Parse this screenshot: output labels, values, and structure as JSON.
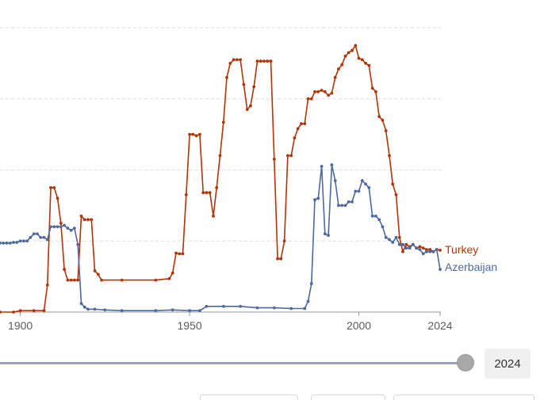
{
  "chart_data": {
    "type": "line",
    "title": "",
    "xlabel": "",
    "ylabel": "",
    "xlim": [
      1894,
      2024
    ],
    "ylim": [
      0,
      4
    ],
    "x_ticks": [
      "1900",
      "1950",
      "2000",
      "2024"
    ],
    "y_gridlines": [
      1,
      2,
      3,
      4
    ],
    "grid": true,
    "series": [
      {
        "name": "Turkey",
        "color": "#b13507",
        "points": [
          [
            1894,
            0
          ],
          [
            1898,
            0
          ],
          [
            1900,
            0.02
          ],
          [
            1904,
            0.02
          ],
          [
            1907,
            0.02
          ],
          [
            1908,
            0.38
          ],
          [
            1909,
            1.75
          ],
          [
            1910,
            1.75
          ],
          [
            1911,
            1.6
          ],
          [
            1912,
            1.25
          ],
          [
            1913,
            0.6
          ],
          [
            1914,
            0.45
          ],
          [
            1915,
            0.45
          ],
          [
            1916,
            0.45
          ],
          [
            1917,
            0.45
          ],
          [
            1918,
            1.35
          ],
          [
            1919,
            1.3
          ],
          [
            1920,
            1.3
          ],
          [
            1921,
            1.3
          ],
          [
            1922,
            0.58
          ],
          [
            1923,
            0.53
          ],
          [
            1924,
            0.45
          ],
          [
            1930,
            0.45
          ],
          [
            1940,
            0.45
          ],
          [
            1944,
            0.47
          ],
          [
            1945,
            0.55
          ],
          [
            1946,
            0.83
          ],
          [
            1947,
            0.82
          ],
          [
            1948,
            0.82
          ],
          [
            1949,
            1.65
          ],
          [
            1950,
            2.5
          ],
          [
            1951,
            2.5
          ],
          [
            1952,
            2.48
          ],
          [
            1953,
            2.5
          ],
          [
            1954,
            1.68
          ],
          [
            1955,
            1.68
          ],
          [
            1956,
            1.68
          ],
          [
            1957,
            1.35
          ],
          [
            1958,
            1.75
          ],
          [
            1959,
            2.2
          ],
          [
            1960,
            2.67
          ],
          [
            1961,
            3.3
          ],
          [
            1962,
            3.5
          ],
          [
            1963,
            3.55
          ],
          [
            1964,
            3.55
          ],
          [
            1965,
            3.55
          ],
          [
            1966,
            3.2
          ],
          [
            1967,
            2.85
          ],
          [
            1968,
            2.9
          ],
          [
            1969,
            3.17
          ],
          [
            1970,
            3.53
          ],
          [
            1971,
            3.53
          ],
          [
            1972,
            3.53
          ],
          [
            1973,
            3.53
          ],
          [
            1974,
            3.53
          ],
          [
            1975,
            2.15
          ],
          [
            1976,
            0.75
          ],
          [
            1977,
            0.75
          ],
          [
            1978,
            1.0
          ],
          [
            1979,
            2.2
          ],
          [
            1980,
            2.2
          ],
          [
            1981,
            2.45
          ],
          [
            1982,
            2.58
          ],
          [
            1983,
            2.65
          ],
          [
            1984,
            2.65
          ],
          [
            1985,
            3.0
          ],
          [
            1986,
            3.0
          ],
          [
            1987,
            3.1
          ],
          [
            1988,
            3.1
          ],
          [
            1989,
            3.12
          ],
          [
            1990,
            3.1
          ],
          [
            1991,
            3.05
          ],
          [
            1992,
            3.08
          ],
          [
            1993,
            3.3
          ],
          [
            1994,
            3.42
          ],
          [
            1995,
            3.48
          ],
          [
            1996,
            3.6
          ],
          [
            1997,
            3.65
          ],
          [
            1998,
            3.68
          ],
          [
            1999,
            3.75
          ],
          [
            2000,
            3.57
          ],
          [
            2001,
            3.55
          ],
          [
            2002,
            3.5
          ],
          [
            2003,
            3.47
          ],
          [
            2004,
            3.15
          ],
          [
            2005,
            3.1
          ],
          [
            2006,
            2.75
          ],
          [
            2007,
            2.7
          ],
          [
            2008,
            2.55
          ],
          [
            2009,
            2.2
          ],
          [
            2010,
            1.8
          ],
          [
            2011,
            1.65
          ],
          [
            2012,
            1.05
          ],
          [
            2013,
            0.85
          ],
          [
            2014,
            0.95
          ],
          [
            2015,
            0.92
          ],
          [
            2016,
            0.95
          ],
          [
            2017,
            0.9
          ],
          [
            2018,
            0.92
          ],
          [
            2019,
            0.9
          ],
          [
            2020,
            0.88
          ],
          [
            2021,
            0.88
          ],
          [
            2022,
            0.85
          ],
          [
            2023,
            0.88
          ],
          [
            2024,
            0.87
          ]
        ]
      },
      {
        "name": "Azerbaijan",
        "color": "#4c6a9c",
        "points": [
          [
            1894,
            0.97
          ],
          [
            1895,
            0.97
          ],
          [
            1896,
            0.97
          ],
          [
            1897,
            0.97
          ],
          [
            1898,
            0.98
          ],
          [
            1899,
            0.98
          ],
          [
            1900,
            1.0
          ],
          [
            1901,
            1.0
          ],
          [
            1902,
            1.0
          ],
          [
            1903,
            1.05
          ],
          [
            1904,
            1.1
          ],
          [
            1905,
            1.1
          ],
          [
            1906,
            1.05
          ],
          [
            1907,
            1.05
          ],
          [
            1908,
            1.02
          ],
          [
            1909,
            1.2
          ],
          [
            1910,
            1.2
          ],
          [
            1911,
            1.2
          ],
          [
            1912,
            1.2
          ],
          [
            1913,
            1.22
          ],
          [
            1914,
            1.18
          ],
          [
            1915,
            1.15
          ],
          [
            1916,
            1.18
          ],
          [
            1917,
            0.95
          ],
          [
            1918,
            0.12
          ],
          [
            1919,
            0.07
          ],
          [
            1920,
            0.04
          ],
          [
            1922,
            0.04
          ],
          [
            1925,
            0.03
          ],
          [
            1930,
            0.02
          ],
          [
            1940,
            0.02
          ],
          [
            1945,
            0.03
          ],
          [
            1950,
            0.02
          ],
          [
            1953,
            0.02
          ],
          [
            1955,
            0.08
          ],
          [
            1960,
            0.08
          ],
          [
            1965,
            0.08
          ],
          [
            1970,
            0.06
          ],
          [
            1975,
            0.06
          ],
          [
            1980,
            0.05
          ],
          [
            1984,
            0.05
          ],
          [
            1985,
            0.15
          ],
          [
            1986,
            0.4
          ],
          [
            1987,
            1.58
          ],
          [
            1988,
            1.6
          ],
          [
            1989,
            2.05
          ],
          [
            1990,
            1.1
          ],
          [
            1991,
            1.08
          ],
          [
            1992,
            2.07
          ],
          [
            1993,
            1.85
          ],
          [
            1994,
            1.5
          ],
          [
            1995,
            1.5
          ],
          [
            1996,
            1.5
          ],
          [
            1997,
            1.55
          ],
          [
            1998,
            1.55
          ],
          [
            1999,
            1.7
          ],
          [
            2000,
            1.7
          ],
          [
            2001,
            1.85
          ],
          [
            2002,
            1.8
          ],
          [
            2003,
            1.75
          ],
          [
            2004,
            1.35
          ],
          [
            2005,
            1.35
          ],
          [
            2006,
            1.3
          ],
          [
            2007,
            1.2
          ],
          [
            2008,
            1.05
          ],
          [
            2009,
            1.02
          ],
          [
            2010,
            0.98
          ],
          [
            2011,
            1.05
          ],
          [
            2012,
            0.95
          ],
          [
            2013,
            0.95
          ],
          [
            2014,
            0.9
          ],
          [
            2015,
            0.9
          ],
          [
            2016,
            0.95
          ],
          [
            2017,
            0.9
          ],
          [
            2018,
            0.88
          ],
          [
            2019,
            0.82
          ],
          [
            2020,
            0.85
          ],
          [
            2021,
            0.85
          ],
          [
            2022,
            0.85
          ],
          [
            2023,
            0.88
          ],
          [
            2024,
            0.6
          ]
        ]
      }
    ],
    "labels": {
      "turkey": "Turkey",
      "azerbaijan": "Azerbaijan"
    }
  },
  "timeline": {
    "year_label": "2024",
    "position_fraction": 1.0
  }
}
